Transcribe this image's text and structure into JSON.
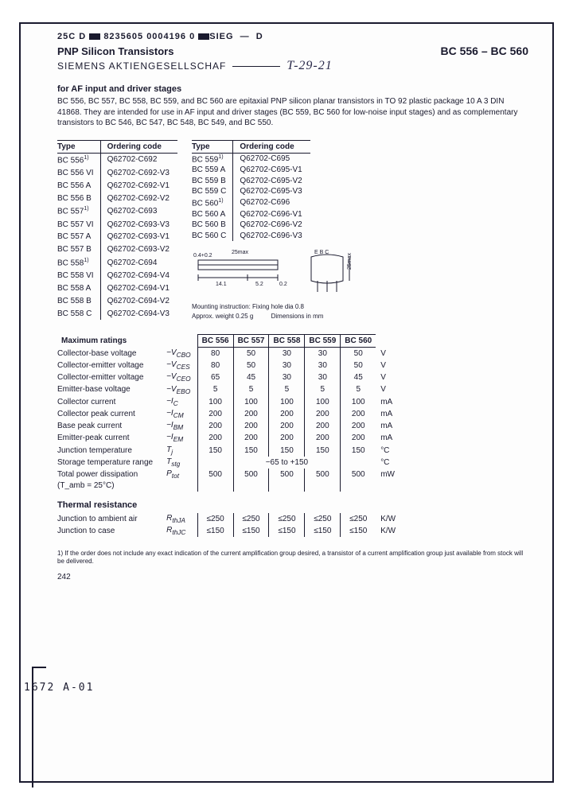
{
  "colors": {
    "ink": "#1a1a2e",
    "paper": "#fdfdfd",
    "border": "#1a1a2e"
  },
  "top_code": {
    "left": "25C D",
    "mid": "8235605 0004196 0",
    "right": "SIEG",
    "tail": "D"
  },
  "header": {
    "title": "PNP Silicon Transistors",
    "part_range": "BC 556 – BC 560",
    "company": "SIEMENS AKTIENGESELLSCHAF",
    "handwritten": "T-29-21"
  },
  "intro": {
    "heading": "for AF input and driver stages",
    "text": "BC 556, BC 557, BC 558, BC 559, and BC 560 are epitaxial PNP silicon planar transistors in TO 92 plastic package 10 A 3 DIN 41868. They are intended for use in AF input and driver stages (BC 559, BC 560 for low-noise input stages) and as complementary transistors to BC 546, BC 547, BC 548, BC 549, and BC 550."
  },
  "ordering": {
    "col_type": "Type",
    "col_code": "Ordering code",
    "left": [
      [
        "BC 556¹⁾",
        "Q62702-C692"
      ],
      [
        "BC 556 VI",
        "Q62702-C692-V3"
      ],
      [
        "BC 556 A",
        "Q62702-C692-V1"
      ],
      [
        "BC 556 B",
        "Q62702-C692-V2"
      ],
      [
        "BC 557¹⁾",
        "Q62702-C693"
      ],
      [
        "BC 557 VI",
        "Q62702-C693-V3"
      ],
      [
        "BC 557 A",
        "Q62702-C693-V1"
      ],
      [
        "BC 557 B",
        "Q62702-C693-V2"
      ],
      [
        "BC 558¹⁾",
        "Q62702-C694"
      ],
      [
        "BC 558 VI",
        "Q62702-C694-V4"
      ],
      [
        "BC 558 A",
        "Q62702-C694-V1"
      ],
      [
        "BC 558 B",
        "Q62702-C694-V2"
      ],
      [
        "BC 558 C",
        "Q62702-C694-V3"
      ]
    ],
    "right": [
      [
        "BC 559¹⁾",
        "Q62702-C695"
      ],
      [
        "BC 559 A",
        "Q62702-C695-V1"
      ],
      [
        "BC 559 B",
        "Q62702-C695-V2"
      ],
      [
        "BC 559 C",
        "Q62702-C695-V3"
      ],
      [
        "BC 560¹⁾",
        "Q62702-C696"
      ],
      [
        "BC 560 A",
        "Q62702-C696-V1"
      ],
      [
        "BC 560 B",
        "Q62702-C696-V2"
      ],
      [
        "BC 560 C",
        "Q62702-C696-V3"
      ]
    ]
  },
  "package": {
    "dim_top": "25max",
    "dim_h": "0.4+0.2",
    "dim_w1": "14.1",
    "dim_w2": "5.2",
    "dim_w3": "0.2",
    "pins": "E B C",
    "dim_h2": "25max",
    "caption1": "Mounting instruction: Fixing hole dia 0.8",
    "caption2": "Approx. weight 0.25 g",
    "caption3": "Dimensions in mm"
  },
  "ratings": {
    "heading": "Maximum ratings",
    "cols": [
      "BC 556",
      "BC 557",
      "BC 558",
      "BC 559",
      "BC 560"
    ],
    "rows": [
      {
        "label": "Collector-base voltage",
        "sym": "−V_CBO",
        "v": [
          "80",
          "50",
          "30",
          "30",
          "50"
        ],
        "unit": "V"
      },
      {
        "label": "Collector-emitter voltage",
        "sym": "−V_CES",
        "v": [
          "80",
          "50",
          "30",
          "30",
          "50"
        ],
        "unit": "V"
      },
      {
        "label": "Collector-emitter voltage",
        "sym": "−V_CEO",
        "v": [
          "65",
          "45",
          "30",
          "30",
          "45"
        ],
        "unit": "V"
      },
      {
        "label": "Emitter-base voltage",
        "sym": "−V_EBO",
        "v": [
          "5",
          "5",
          "5",
          "5",
          "5"
        ],
        "unit": "V"
      },
      {
        "label": "Collector current",
        "sym": "−I_C",
        "v": [
          "100",
          "100",
          "100",
          "100",
          "100"
        ],
        "unit": "mA"
      },
      {
        "label": "Collector peak current",
        "sym": "−I_CM",
        "v": [
          "200",
          "200",
          "200",
          "200",
          "200"
        ],
        "unit": "mA"
      },
      {
        "label": "Base peak current",
        "sym": "−I_BM",
        "v": [
          "200",
          "200",
          "200",
          "200",
          "200"
        ],
        "unit": "mA"
      },
      {
        "label": "Emitter-peak current",
        "sym": "−I_EM",
        "v": [
          "200",
          "200",
          "200",
          "200",
          "200"
        ],
        "unit": "mA"
      },
      {
        "label": "Junction temperature",
        "sym": "T_j",
        "v": [
          "150",
          "150",
          "150",
          "150",
          "150"
        ],
        "unit": "°C"
      },
      {
        "label": "Storage temperature range",
        "sym": "T_stg",
        "v": [
          "",
          "−65 to +150",
          "",
          "",
          ""
        ],
        "unit": "°C",
        "span": true
      },
      {
        "label": "Total power dissipation",
        "sym": "P_tot",
        "v": [
          "500",
          "500",
          "500",
          "500",
          "500"
        ],
        "unit": "mW"
      },
      {
        "label": "(T_amb = 25°C)",
        "sym": "",
        "v": [
          "",
          "",
          "",
          "",
          ""
        ],
        "unit": ""
      }
    ],
    "thermal_heading": "Thermal resistance",
    "thermal": [
      {
        "label": "Junction to ambient air",
        "sym": "R_thJA",
        "v": [
          "≤250",
          "≤250",
          "≤250",
          "≤250",
          "≤250"
        ],
        "unit": "K/W"
      },
      {
        "label": "Junction to case",
        "sym": "R_thJC",
        "v": [
          "≤150",
          "≤150",
          "≤150",
          "≤150",
          "≤150"
        ],
        "unit": "K/W"
      }
    ]
  },
  "footnote": "1) If the order does not include any exact indication of the current amplification group desired, a transistor of a current amplification group just available from stock will be delivered.",
  "page_number": "242",
  "stamp": "1672    A-01"
}
